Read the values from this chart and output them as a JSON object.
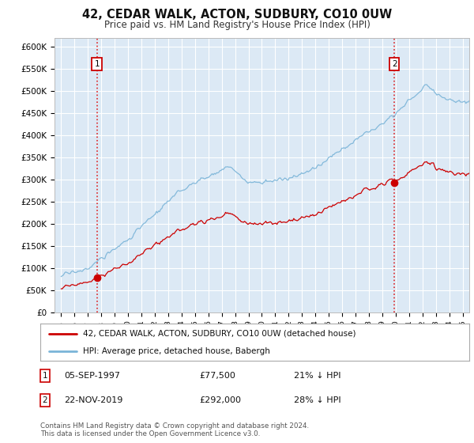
{
  "title": "42, CEDAR WALK, ACTON, SUDBURY, CO10 0UW",
  "subtitle": "Price paid vs. HM Land Registry's House Price Index (HPI)",
  "background_color": "#ffffff",
  "plot_bg_color": "#dce9f5",
  "grid_color": "#ffffff",
  "hpi_color": "#7ab4d8",
  "price_color": "#cc0000",
  "marker_color": "#cc0000",
  "annotation_box_color": "#cc0000",
  "sale1_year": 1997.67,
  "sale1_price": 77500,
  "sale2_year": 2019.9,
  "sale2_price": 292000,
  "ylim_min": 0,
  "ylim_max": 620000,
  "yticks": [
    0,
    50000,
    100000,
    150000,
    200000,
    250000,
    300000,
    350000,
    400000,
    450000,
    500000,
    550000,
    600000
  ],
  "xlim_min": 1994.5,
  "xlim_max": 2025.5,
  "legend_line1": "42, CEDAR WALK, ACTON, SUDBURY, CO10 0UW (detached house)",
  "legend_line2": "HPI: Average price, detached house, Babergh",
  "footnote": "Contains HM Land Registry data © Crown copyright and database right 2024.\nThis data is licensed under the Open Government Licence v3.0.",
  "table_row1": [
    "1",
    "05-SEP-1997",
    "£77,500",
    "21% ↓ HPI"
  ],
  "table_row2": [
    "2",
    "22-NOV-2019",
    "£292,000",
    "28% ↓ HPI"
  ]
}
